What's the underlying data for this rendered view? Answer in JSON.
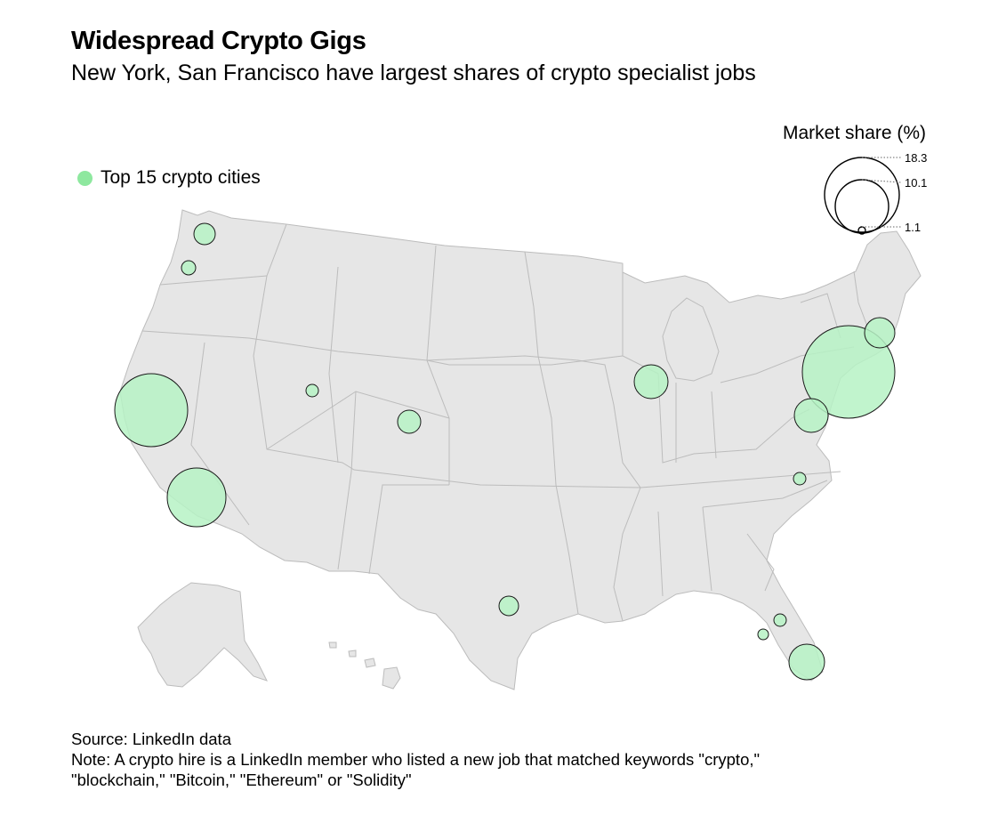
{
  "title": "Widespread Crypto Gigs",
  "subtitle": "New York, San Francisco have largest shares of crypto specialist jobs",
  "legend": {
    "label": "Top 15 crypto cities",
    "color": "#8ee89f"
  },
  "size_legend": {
    "title": "Market share (%)",
    "values": [
      "18.3",
      "10.1",
      "1.1"
    ]
  },
  "colors": {
    "land": "#e6e6e6",
    "border": "#bcbcbc",
    "bubble_fill": "#b6f2c4",
    "bubble_stroke": "#1a1a1a"
  },
  "source": "Source: LinkedIn data",
  "note_line1": "Note: A crypto hire is a LinkedIn member who listed a new job that matched keywords \"crypto,\"",
  "note_line2": "\"blockchain,\" \"Bitcoin,\" \"Ethereum\" or \"Solidity\""
}
